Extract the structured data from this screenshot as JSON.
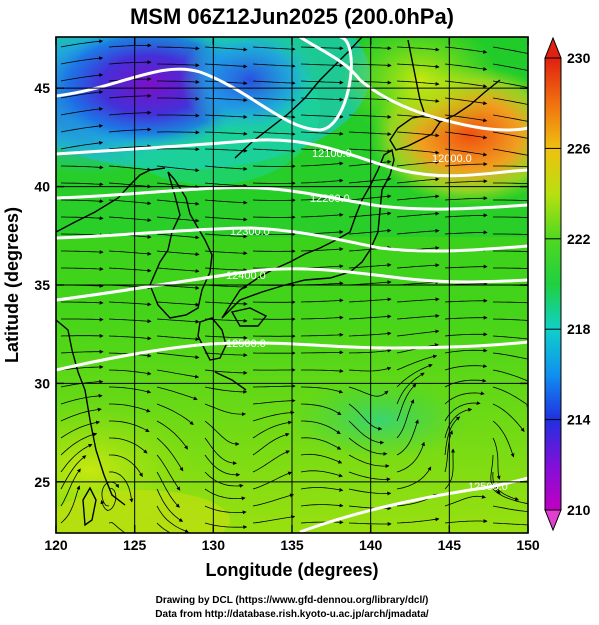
{
  "title": "MSM 06Z12Jun2025 (200.0hPa)",
  "xaxis": {
    "label": "Longitude (degrees)",
    "ticks": [
      "120",
      "125",
      "130",
      "135",
      "140",
      "145",
      "150"
    ]
  },
  "yaxis": {
    "label": "Latitude  (degrees)",
    "ticks": [
      "25",
      "30",
      "35",
      "40",
      "45"
    ]
  },
  "colorbar": {
    "ticks": [
      "210",
      "214",
      "218",
      "222",
      "226",
      "230"
    ],
    "min": 210,
    "max": 230
  },
  "contour_labels": [
    "12100.0",
    "12000.0",
    "12200.0",
    "12300.0",
    "12400.0",
    "12500.0",
    "12500.0"
  ],
  "credits": {
    "line1": "Drawing by DCL (https://www.gfd-dennou.org/library/dcl/)",
    "line2": "Data from http://database.rish.kyoto-u.ac.jp/arch/jmadata/"
  },
  "chart_data": {
    "type": "heatmap",
    "title": "MSM 06Z12Jun2025 (200.0hPa)",
    "xlabel": "Longitude (degrees)",
    "ylabel": "Latitude  (degrees)",
    "xlim": [
      120,
      150
    ],
    "ylim": [
      22.4,
      47.6
    ],
    "color_range": [
      210,
      230
    ],
    "contours": [
      {
        "value": 12000,
        "label": "12000.0"
      },
      {
        "value": 12100,
        "label": "12100.0"
      },
      {
        "value": 12200,
        "label": "12200.0"
      },
      {
        "value": 12300,
        "label": "12300.0"
      },
      {
        "value": 12400,
        "label": "12400.0"
      },
      {
        "value": 12500,
        "label": "12500.0"
      }
    ],
    "grid": true,
    "legend": "colorbar-right"
  }
}
